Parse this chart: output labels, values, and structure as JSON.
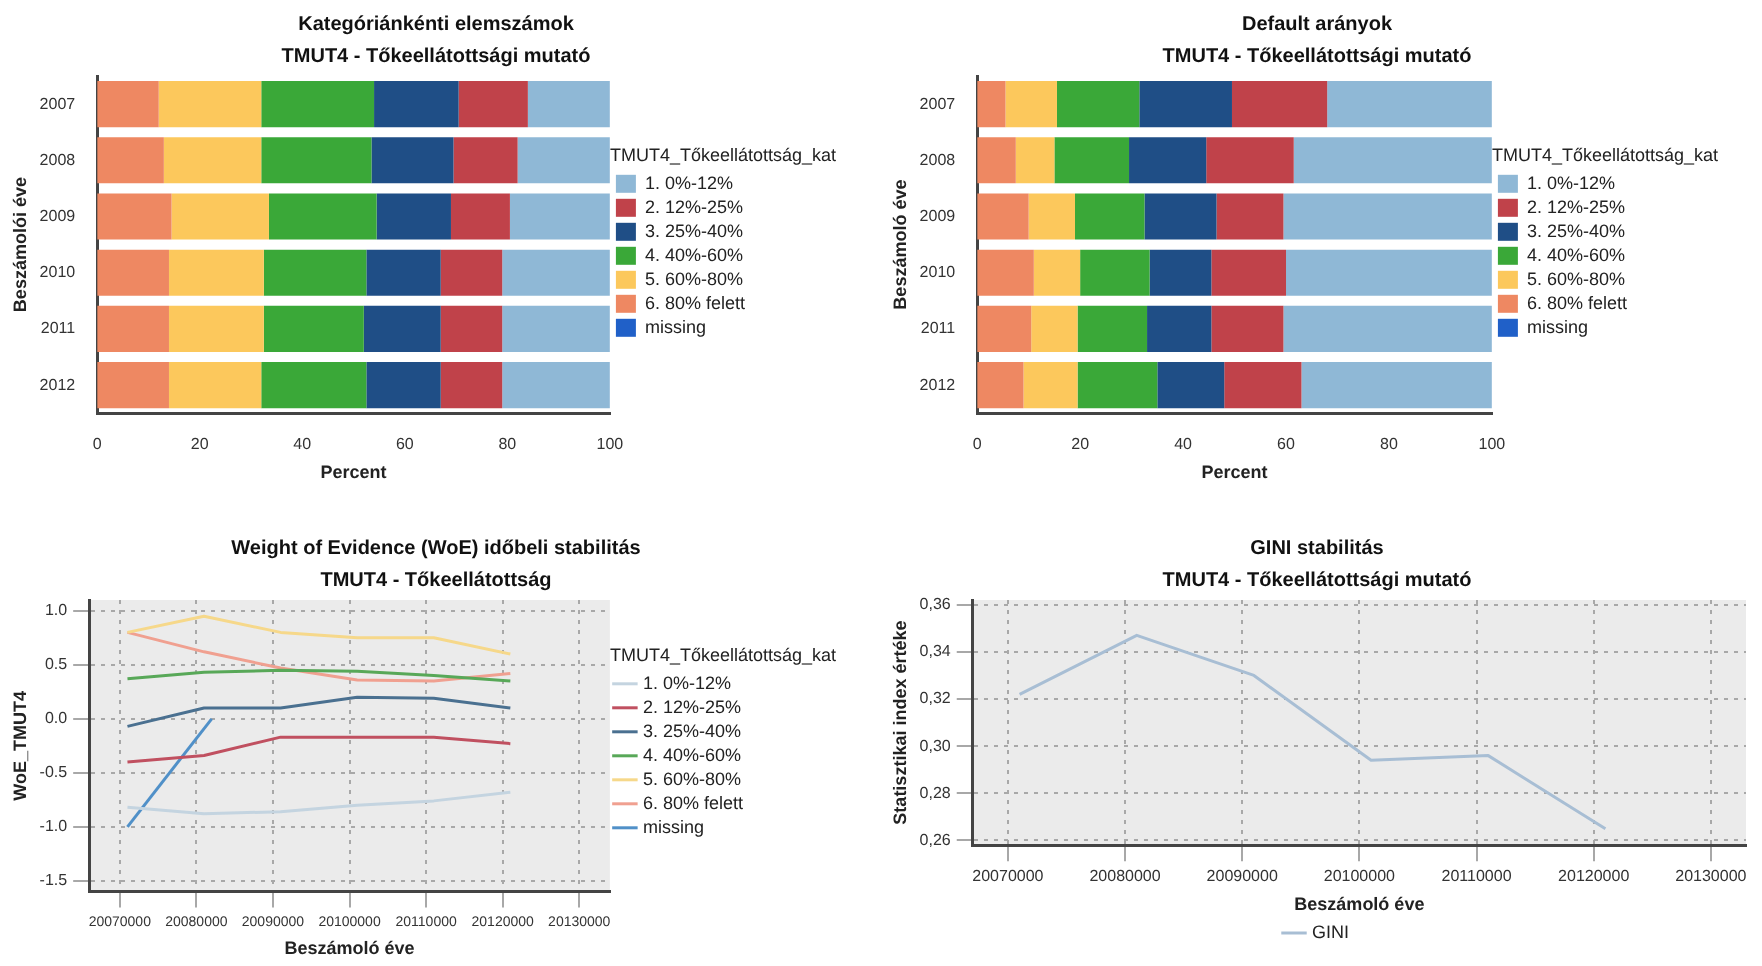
{
  "chart_data": [
    {
      "type": "bar",
      "orientation": "horizontal",
      "stacked": true,
      "title": "Kategóriánkénti elemszámok",
      "subtitle": "TMUT4 - Tőkeellátottsági mutató",
      "xlabel": "Percent",
      "ylabel": "Beszámolói éve",
      "legend_title": "TMUT4_Tőkeellátottság_kat",
      "legend": "right",
      "categories": [
        "2007",
        "2008",
        "2009",
        "2010",
        "2011",
        "2012"
      ],
      "xlim": [
        0,
        100
      ],
      "xticks": [
        0,
        20,
        40,
        60,
        80,
        100
      ],
      "series": [
        {
          "name": "missing",
          "color": "#2060c8",
          "values": [
            null,
            null,
            null,
            null,
            null,
            null
          ]
        },
        {
          "name": "6. 80% felett",
          "color": "#ee8862",
          "values": [
            12,
            13,
            14.5,
            14,
            14,
            14
          ]
        },
        {
          "name": "5. 60%-80%",
          "color": "#fcc85c",
          "values": [
            20,
            19,
            19,
            18.5,
            18.5,
            18
          ]
        },
        {
          "name": "4. 40%-60%",
          "color": "#3aa838",
          "values": [
            22,
            21.5,
            21,
            20,
            19.5,
            20.5
          ]
        },
        {
          "name": "3. 25%-40%",
          "color": "#1f4e86",
          "values": [
            16.5,
            16,
            14.5,
            14.5,
            15,
            14.5
          ]
        },
        {
          "name": "2. 12%-25%",
          "color": "#c0424a",
          "values": [
            13.5,
            12.5,
            11.5,
            12,
            12,
            12
          ]
        },
        {
          "name": "1. 0%-12%",
          "color": "#8fb8d6",
          "values": [
            16,
            18,
            19.5,
            21,
            21,
            21
          ]
        }
      ]
    },
    {
      "type": "bar",
      "orientation": "horizontal",
      "stacked": true,
      "title": "Default arányok",
      "subtitle": "TMUT4 - Tőkeellátottsági mutató",
      "xlabel": "Percent",
      "ylabel": "Beszámoló éve",
      "legend_title": "TMUT4_Tőkeellátottság_kat",
      "legend": "right",
      "categories": [
        "2007",
        "2008",
        "2009",
        "2010",
        "2011",
        "2012"
      ],
      "xlim": [
        0,
        100
      ],
      "xticks": [
        0,
        20,
        40,
        60,
        80,
        100
      ],
      "series": [
        {
          "name": "missing",
          "color": "#2060c8",
          "values": [
            null,
            null,
            null,
            null,
            null,
            null
          ]
        },
        {
          "name": "6. 80% felett",
          "color": "#ee8862",
          "values": [
            5.5,
            7.5,
            10,
            11,
            10.5,
            9
          ]
        },
        {
          "name": "5. 60%-80%",
          "color": "#fcc85c",
          "values": [
            10,
            7.5,
            9,
            9,
            9,
            10.5
          ]
        },
        {
          "name": "4. 40%-60%",
          "color": "#3aa838",
          "values": [
            16,
            14.5,
            13.5,
            13.5,
            13.5,
            15.5
          ]
        },
        {
          "name": "3. 25%-40%",
          "color": "#1f4e86",
          "values": [
            18,
            15,
            14,
            12,
            12.5,
            13
          ]
        },
        {
          "name": "2. 12%-25%",
          "color": "#c0424a",
          "values": [
            18.5,
            17,
            13,
            14.5,
            14,
            15
          ]
        },
        {
          "name": "1. 0%-12%",
          "color": "#8fb8d6",
          "values": [
            32,
            38.5,
            40.5,
            40,
            40.5,
            37
          ]
        }
      ]
    },
    {
      "type": "line",
      "title": "Weight of Evidence (WoE) időbeli stabilitás",
      "subtitle": "TMUT4 - Tőkeellátottság",
      "xlabel": "Beszámoló éve",
      "ylabel": "WoE_TMUT4",
      "legend_title": "TMUT4_Tőkeellátottság_kat",
      "legend": "right",
      "grid": true,
      "marker": "none",
      "x": [
        20071000,
        20081000,
        20091000,
        20101000,
        20111000,
        20121000
      ],
      "xlim": [
        20066000,
        20134000
      ],
      "xticks": [
        20070000,
        20080000,
        20090000,
        20100000,
        20110000,
        20120000,
        20130000
      ],
      "ylim": [
        -1.6,
        1.1
      ],
      "yticks": [
        {
          "value": -1.5,
          "label": "-1.5"
        },
        {
          "value": -1,
          "label": "-1.0"
        },
        {
          "value": -0.5,
          "label": "-0.5"
        },
        {
          "value": 0,
          "label": "0.0"
        },
        {
          "value": 0.5,
          "label": "0.5"
        },
        {
          "value": 1,
          "label": "1.0"
        }
      ],
      "series": [
        {
          "name": "1. 0%-12%",
          "color": "#c4d4e0",
          "values": [
            -0.82,
            -0.88,
            -0.86,
            -0.8,
            -0.76,
            -0.68
          ]
        },
        {
          "name": "2. 12%-25%",
          "color": "#c05060",
          "values": [
            -0.4,
            -0.34,
            -0.17,
            -0.17,
            -0.17,
            -0.23
          ]
        },
        {
          "name": "3. 25%-40%",
          "color": "#4a7090",
          "values": [
            -0.07,
            0.1,
            0.1,
            0.2,
            0.19,
            0.1
          ]
        },
        {
          "name": "4. 40%-60%",
          "color": "#58a858",
          "values": [
            0.37,
            0.43,
            0.45,
            0.44,
            0.4,
            0.35
          ]
        },
        {
          "name": "5. 60%-80%",
          "color": "#f6d88a",
          "values": [
            0.8,
            0.95,
            0.8,
            0.75,
            0.75,
            0.6
          ]
        },
        {
          "name": "6. 80% felett",
          "color": "#f0a090",
          "values": [
            0.8,
            0.62,
            0.47,
            0.36,
            0.35,
            0.42
          ]
        },
        {
          "name": "missing",
          "color": "#5090c8",
          "x": [
            20071000,
            20082000
          ],
          "values": [
            -1,
            0
          ]
        }
      ]
    },
    {
      "type": "line",
      "title": "GINI stabilitás",
      "subtitle": "TMUT4 - Tőkeellátottsági mutató",
      "xlabel": "Beszámoló éve",
      "ylabel": "Statisztikai index értéke",
      "legend": "bottom",
      "grid": true,
      "marker": "none",
      "x": [
        20071000,
        20081000,
        20091000,
        20101000,
        20111000,
        20121000
      ],
      "xlim": [
        20067000,
        20133000
      ],
      "xticks": [
        20070000,
        20080000,
        20090000,
        20100000,
        20110000,
        20120000,
        20130000
      ],
      "ylim": [
        0.258,
        0.362
      ],
      "yticks": [
        {
          "value": 0.26,
          "label": "0,26"
        },
        {
          "value": 0.28,
          "label": "0,28"
        },
        {
          "value": 0.3,
          "label": "0,30"
        },
        {
          "value": 0.32,
          "label": "0,32"
        },
        {
          "value": 0.34,
          "label": "0,34"
        },
        {
          "value": 0.36,
          "label": "0,36"
        }
      ],
      "series": [
        {
          "name": "GINI",
          "color": "#a8bed4",
          "values": [
            0.322,
            0.347,
            0.33,
            0.294,
            0.296,
            0.265
          ]
        }
      ]
    }
  ]
}
